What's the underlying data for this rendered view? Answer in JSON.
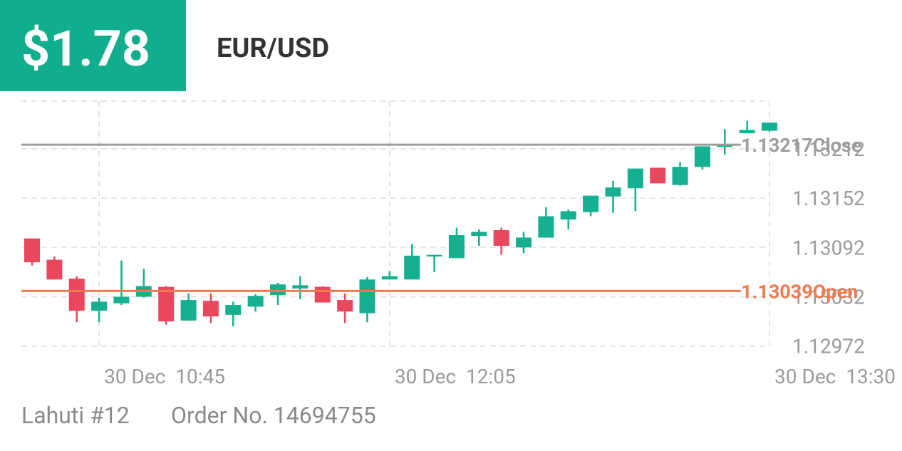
{
  "header": {
    "amount": "$1.78",
    "symbol": "EUR/USD"
  },
  "chart_data": {
    "type": "candlestick",
    "categories": [
      null,
      null,
      null,
      "30 Dec  10:45",
      null,
      null,
      null,
      null,
      null,
      null,
      null,
      null,
      null,
      null,
      null,
      null,
      "30 Dec  12:05",
      null,
      null,
      null,
      null,
      null,
      null,
      null,
      null,
      null,
      null,
      null,
      null,
      null,
      null,
      null,
      null,
      "30 Dec  13:30"
    ],
    "open": [
      1.13103,
      1.13077,
      1.13054,
      1.13015,
      1.13024,
      1.13032,
      1.13044,
      1.13003,
      1.13027,
      1.1301,
      1.1302,
      1.13034,
      1.13042,
      1.13044,
      1.13028,
      1.13012,
      1.13053,
      1.13053,
      1.13081,
      1.13079,
      1.13106,
      1.13113,
      1.13092,
      1.13104,
      1.13126,
      1.13135,
      1.13154,
      1.13164,
      1.13189,
      1.13168,
      1.1319,
      1.13215,
      1.13231,
      1.13234
    ],
    "high": [
      1.13103,
      1.13081,
      1.13057,
      1.13031,
      1.13076,
      1.13066,
      1.13045,
      1.13036,
      1.13036,
      1.13026,
      1.13035,
      1.13049,
      1.13057,
      1.13045,
      1.13036,
      1.13056,
      1.13063,
      1.13096,
      1.13083,
      1.13116,
      1.13114,
      1.13116,
      1.13111,
      1.13141,
      1.13138,
      1.13155,
      1.13173,
      1.13188,
      1.13189,
      1.13196,
      1.13215,
      1.13236,
      1.13246,
      1.13244
    ],
    "low": [
      1.1307,
      1.13053,
      1.13001,
      1.13001,
      1.13022,
      1.13031,
      1.12998,
      1.13003,
      1.13,
      1.12996,
      1.13014,
      1.13022,
      1.13029,
      1.13025,
      1.13,
      1.13001,
      1.13053,
      1.13053,
      1.13062,
      1.13079,
      1.13094,
      1.13083,
      1.13085,
      1.13104,
      1.13114,
      1.1313,
      1.13134,
      1.13136,
      1.1317,
      1.13167,
      1.13187,
      1.13205,
      1.13231,
      1.13233
    ],
    "close": [
      1.13074,
      1.13053,
      1.13015,
      1.13026,
      1.13032,
      1.13045,
      1.13002,
      1.13028,
      1.13008,
      1.13022,
      1.13033,
      1.13047,
      1.13046,
      1.13025,
      1.13014,
      1.13053,
      1.13057,
      1.13082,
      1.13083,
      1.13107,
      1.13111,
      1.13094,
      1.13104,
      1.1313,
      1.13136,
      1.13155,
      1.13165,
      1.13188,
      1.1317,
      1.1319,
      1.13215,
      1.13216,
      1.13235,
      1.13244
    ],
    "up_color": "#14b090",
    "down_color": "#e8475c",
    "ylim": [
      1.1297,
      1.1327
    ],
    "yticks": [
      1.12972,
      1.13032,
      1.13092,
      1.13152,
      1.13212
    ],
    "grid": true,
    "reference_lines": [
      {
        "value": 1.13217,
        "label": "Close",
        "color": "#9e9e9e"
      },
      {
        "value": 1.13039,
        "label": "Open",
        "color": "#f07a50"
      }
    ]
  },
  "footer": {
    "account": "Lahuti #12",
    "order": "Order No. 14694755"
  }
}
